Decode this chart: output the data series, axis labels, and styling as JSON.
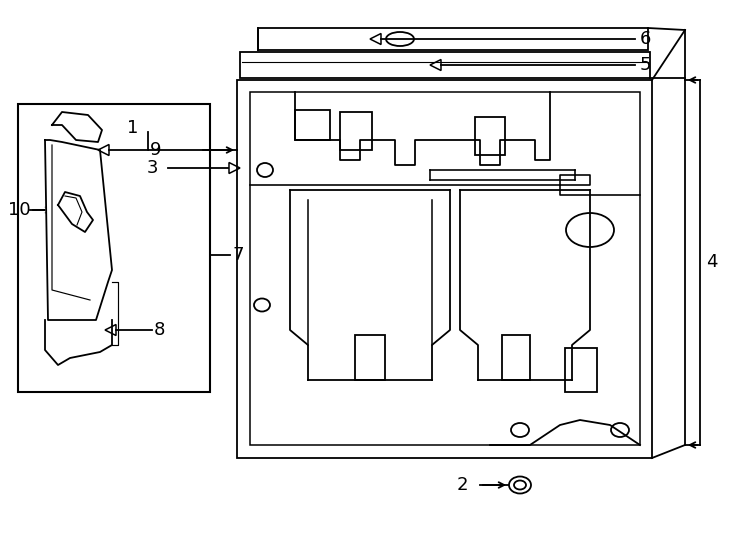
{
  "bg_color": "#ffffff",
  "line_color": "#000000",
  "fig_width": 7.34,
  "fig_height": 5.4,
  "lw": 1.3
}
